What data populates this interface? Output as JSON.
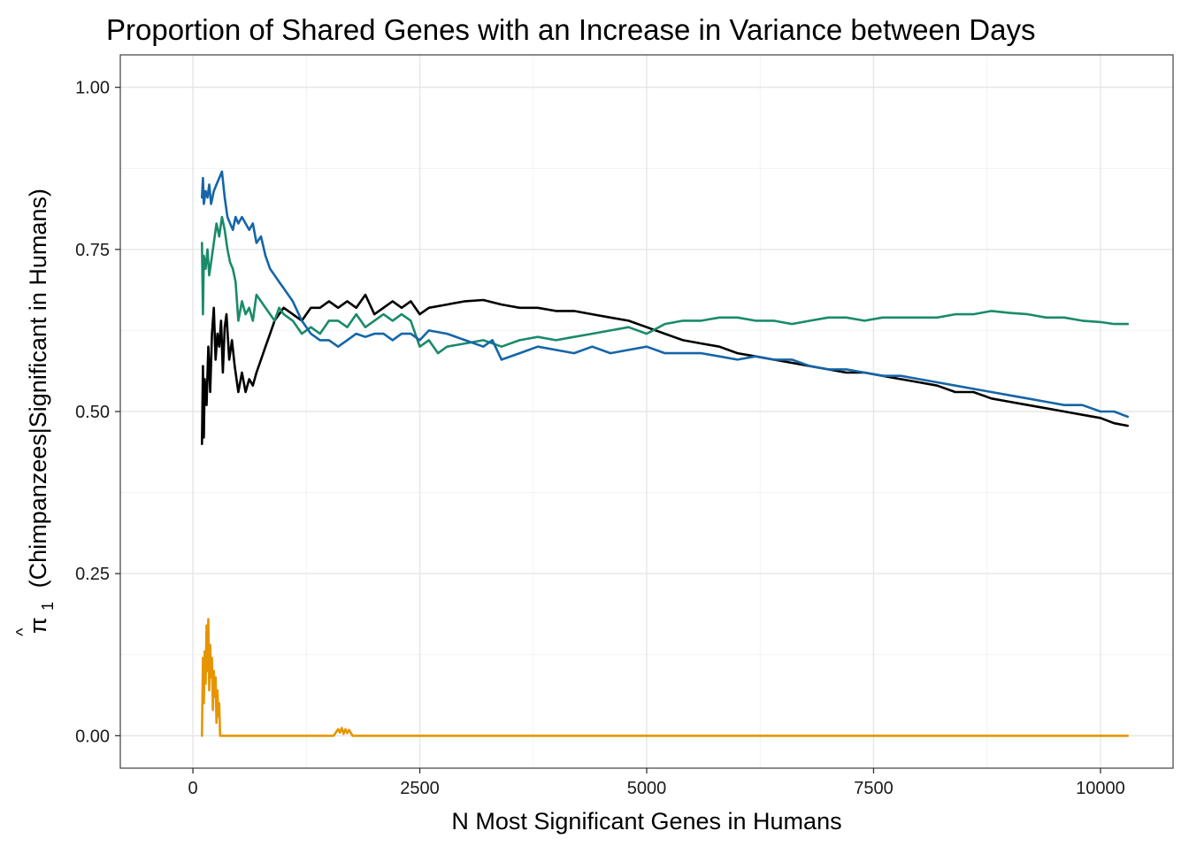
{
  "chart_data": {
    "type": "line",
    "title": "Proportion of Shared Genes with an Increase in Variance between Days",
    "xlabel": "N Most Significant Genes in Humans",
    "ylabel": "(Chimpanzees|Significant in Humans)",
    "ylabel_symbol": "π",
    "ylabel_symbol_hat": "^",
    "ylabel_symbol_sub": "1",
    "xlim": [
      -800,
      10800
    ],
    "ylim": [
      -0.05,
      1.05
    ],
    "x_ticks": [
      0,
      2500,
      5000,
      7500,
      10000
    ],
    "x_tick_labels": [
      "0",
      "2500",
      "5000",
      "7500",
      "10000"
    ],
    "y_ticks": [
      0,
      0.25,
      0.5,
      0.75,
      1.0
    ],
    "y_tick_labels": [
      "0.00",
      "0.25",
      "0.50",
      "0.75",
      "1.00"
    ],
    "grid": true,
    "legend": "none",
    "series": [
      {
        "color": "#000000",
        "x": [
          100,
          110,
          120,
          130,
          150,
          170,
          190,
          210,
          230,
          250,
          270,
          290,
          310,
          330,
          350,
          370,
          400,
          430,
          460,
          500,
          540,
          580,
          620,
          660,
          700,
          750,
          800,
          850,
          900,
          950,
          1000,
          1100,
          1200,
          1300,
          1400,
          1500,
          1600,
          1700,
          1800,
          1900,
          2000,
          2100,
          2200,
          2300,
          2400,
          2500,
          2600,
          2800,
          3000,
          3200,
          3400,
          3600,
          3800,
          4000,
          4200,
          4400,
          4600,
          4800,
          5000,
          5200,
          5400,
          5600,
          5800,
          6000,
          6200,
          6400,
          6600,
          6800,
          7000,
          7200,
          7400,
          7600,
          7800,
          8000,
          8200,
          8400,
          8600,
          8800,
          9000,
          9200,
          9400,
          9600,
          9800,
          10000,
          10150,
          10300
        ],
        "y": [
          0.45,
          0.57,
          0.46,
          0.55,
          0.51,
          0.6,
          0.53,
          0.62,
          0.66,
          0.58,
          0.62,
          0.6,
          0.64,
          0.56,
          0.63,
          0.65,
          0.58,
          0.61,
          0.57,
          0.53,
          0.56,
          0.53,
          0.55,
          0.54,
          0.56,
          0.58,
          0.6,
          0.62,
          0.64,
          0.65,
          0.66,
          0.65,
          0.64,
          0.66,
          0.66,
          0.67,
          0.66,
          0.67,
          0.66,
          0.68,
          0.65,
          0.66,
          0.67,
          0.66,
          0.67,
          0.65,
          0.66,
          0.665,
          0.67,
          0.672,
          0.665,
          0.66,
          0.66,
          0.655,
          0.655,
          0.65,
          0.645,
          0.64,
          0.63,
          0.62,
          0.61,
          0.605,
          0.6,
          0.59,
          0.585,
          0.58,
          0.575,
          0.57,
          0.565,
          0.56,
          0.56,
          0.555,
          0.55,
          0.545,
          0.54,
          0.53,
          0.53,
          0.52,
          0.515,
          0.51,
          0.505,
          0.5,
          0.495,
          0.49,
          0.482,
          0.478
        ]
      },
      {
        "color": "#1a8a6a",
        "x": [
          100,
          110,
          120,
          140,
          160,
          180,
          200,
          230,
          260,
          290,
          320,
          350,
          380,
          410,
          440,
          470,
          500,
          540,
          580,
          620,
          660,
          700,
          750,
          800,
          850,
          900,
          950,
          1000,
          1100,
          1200,
          1300,
          1400,
          1500,
          1600,
          1700,
          1800,
          1900,
          2000,
          2100,
          2200,
          2300,
          2400,
          2500,
          2600,
          2700,
          2800,
          3000,
          3200,
          3400,
          3600,
          3800,
          4000,
          4200,
          4400,
          4600,
          4800,
          5000,
          5200,
          5400,
          5600,
          5800,
          6000,
          6200,
          6400,
          6600,
          6800,
          7000,
          7200,
          7400,
          7600,
          7800,
          8000,
          8200,
          8400,
          8600,
          8800,
          9000,
          9200,
          9400,
          9600,
          9800,
          10000,
          10150,
          10300
        ],
        "y": [
          0.76,
          0.65,
          0.74,
          0.72,
          0.75,
          0.71,
          0.73,
          0.76,
          0.79,
          0.77,
          0.8,
          0.78,
          0.75,
          0.73,
          0.72,
          0.7,
          0.64,
          0.67,
          0.65,
          0.66,
          0.64,
          0.68,
          0.67,
          0.66,
          0.65,
          0.64,
          0.66,
          0.65,
          0.64,
          0.62,
          0.63,
          0.62,
          0.64,
          0.64,
          0.63,
          0.65,
          0.63,
          0.64,
          0.65,
          0.64,
          0.65,
          0.64,
          0.6,
          0.61,
          0.59,
          0.6,
          0.605,
          0.61,
          0.6,
          0.61,
          0.615,
          0.61,
          0.615,
          0.62,
          0.625,
          0.63,
          0.62,
          0.635,
          0.64,
          0.64,
          0.645,
          0.645,
          0.64,
          0.64,
          0.635,
          0.64,
          0.645,
          0.645,
          0.64,
          0.645,
          0.645,
          0.645,
          0.645,
          0.65,
          0.65,
          0.655,
          0.652,
          0.65,
          0.645,
          0.645,
          0.64,
          0.638,
          0.635,
          0.635
        ]
      },
      {
        "color": "#1565a8",
        "x": [
          100,
          110,
          120,
          140,
          160,
          180,
          200,
          230,
          260,
          290,
          320,
          350,
          380,
          410,
          440,
          470,
          500,
          540,
          580,
          620,
          660,
          700,
          750,
          800,
          850,
          900,
          950,
          1000,
          1100,
          1200,
          1300,
          1400,
          1500,
          1600,
          1700,
          1800,
          1900,
          2000,
          2100,
          2200,
          2300,
          2400,
          2500,
          2600,
          2800,
          3000,
          3200,
          3300,
          3400,
          3600,
          3800,
          4000,
          4200,
          4400,
          4600,
          4800,
          5000,
          5200,
          5400,
          5600,
          5800,
          6000,
          6200,
          6400,
          6600,
          6800,
          7000,
          7200,
          7400,
          7600,
          7800,
          8000,
          8200,
          8400,
          8600,
          8800,
          9000,
          9200,
          9400,
          9600,
          9800,
          10000,
          10150,
          10300
        ],
        "y": [
          0.83,
          0.86,
          0.82,
          0.84,
          0.83,
          0.85,
          0.82,
          0.84,
          0.85,
          0.86,
          0.87,
          0.83,
          0.8,
          0.79,
          0.78,
          0.8,
          0.79,
          0.8,
          0.79,
          0.78,
          0.79,
          0.76,
          0.77,
          0.74,
          0.72,
          0.71,
          0.7,
          0.69,
          0.67,
          0.64,
          0.62,
          0.61,
          0.61,
          0.6,
          0.61,
          0.62,
          0.615,
          0.62,
          0.62,
          0.61,
          0.62,
          0.62,
          0.61,
          0.625,
          0.62,
          0.61,
          0.6,
          0.61,
          0.58,
          0.59,
          0.6,
          0.595,
          0.59,
          0.6,
          0.59,
          0.595,
          0.6,
          0.59,
          0.59,
          0.59,
          0.585,
          0.58,
          0.585,
          0.58,
          0.58,
          0.57,
          0.565,
          0.565,
          0.56,
          0.555,
          0.555,
          0.55,
          0.545,
          0.54,
          0.535,
          0.53,
          0.525,
          0.52,
          0.515,
          0.51,
          0.51,
          0.5,
          0.5,
          0.492
        ]
      },
      {
        "color": "#e69500",
        "x": [
          100,
          110,
          120,
          130,
          140,
          150,
          160,
          170,
          180,
          190,
          200,
          210,
          220,
          230,
          240,
          250,
          260,
          270,
          280,
          290,
          300,
          320,
          350,
          400,
          500,
          800,
          1200,
          1550,
          1600,
          1620,
          1640,
          1660,
          1680,
          1700,
          1720,
          1760,
          2000,
          4000,
          6000,
          8000,
          10300
        ],
        "y": [
          0.0,
          0.12,
          0.05,
          0.13,
          0.08,
          0.17,
          0.1,
          0.18,
          0.07,
          0.14,
          0.09,
          0.12,
          0.04,
          0.1,
          0.06,
          0.09,
          0.02,
          0.07,
          0.03,
          0.05,
          0.0,
          0.0,
          0.0,
          0.0,
          0.0,
          0.0,
          0.0,
          0.0,
          0.01,
          0.005,
          0.012,
          0.003,
          0.01,
          0.004,
          0.009,
          0.0,
          0.0,
          0.0,
          0.0,
          0.0,
          0.0
        ]
      }
    ]
  }
}
